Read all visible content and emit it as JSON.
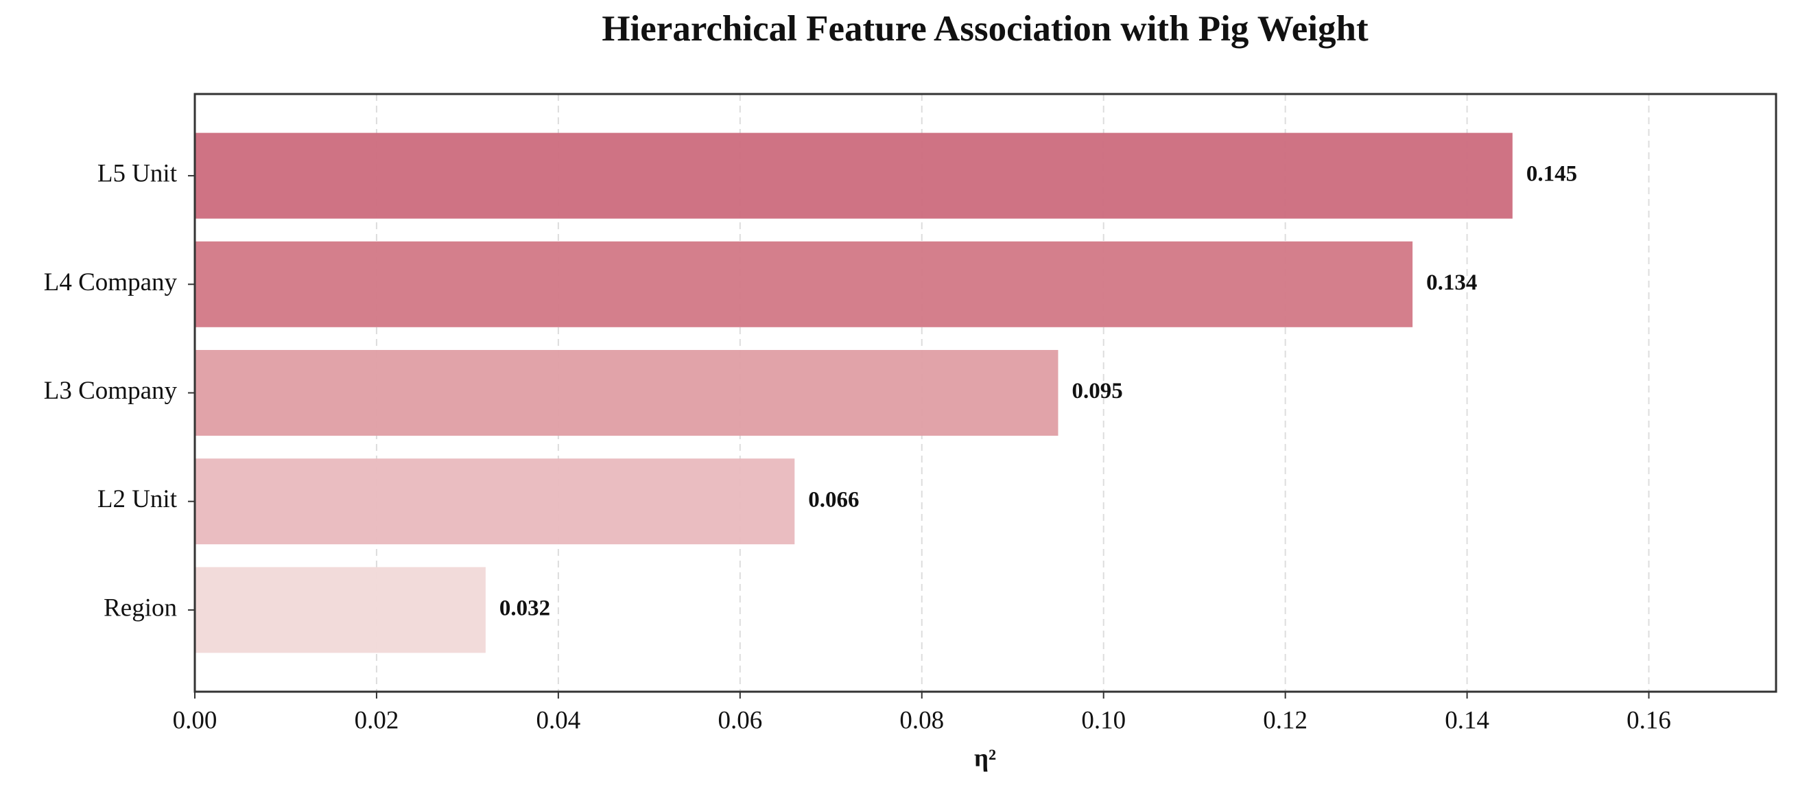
{
  "chart_data": {
    "type": "barh",
    "title": "Hierarchical Feature Association with Pig Weight",
    "xlabel": "η²",
    "categories": [
      "L5 Unit",
      "L4 Company",
      "L3 Company",
      "L2 Unit",
      "Region"
    ],
    "values": [
      0.145,
      0.134,
      0.095,
      0.066,
      0.032
    ],
    "colors": [
      "#cc6c7d",
      "#d27886",
      "#df9ea4",
      "#e9b9be",
      "#f1d9d8"
    ],
    "xlim": [
      0,
      0.174
    ],
    "xticks": [
      {
        "value": 0,
        "label": "0.00"
      },
      0.02,
      0.04,
      0.06,
      0.08,
      {
        "value": 0.1,
        "label": "0.10"
      },
      0.12,
      0.14,
      0.16
    ],
    "grid": true
  }
}
